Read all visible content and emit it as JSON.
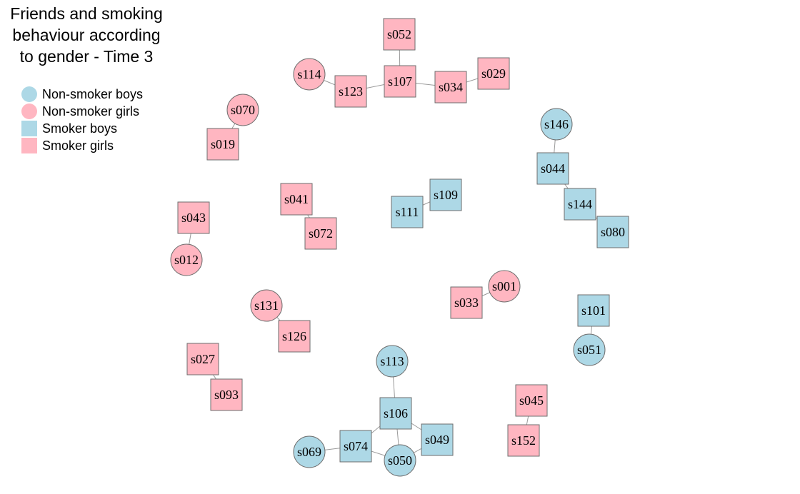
{
  "title": {
    "lines": [
      "Friends and smoking",
      "behaviour according",
      "to gender - Time 3"
    ]
  },
  "colors": {
    "boys": "#add8e6",
    "girls": "#ffb6c1",
    "node_border": "#6e6e6e",
    "edge": "#9a9a9a"
  },
  "legend": [
    {
      "label": "Non-smoker boys",
      "shape": "circle",
      "color": "#add8e6"
    },
    {
      "label": "Non-smoker girls",
      "shape": "circle",
      "color": "#ffb6c1"
    },
    {
      "label": "Smoker boys",
      "shape": "square",
      "color": "#add8e6"
    },
    {
      "label": "Smoker girls",
      "shape": "square",
      "color": "#ffb6c1"
    }
  ],
  "nodes": [
    {
      "id": "s052",
      "group": "girls",
      "shape": "square"
    },
    {
      "id": "s114",
      "group": "girls",
      "shape": "circle"
    },
    {
      "id": "s123",
      "group": "girls",
      "shape": "square"
    },
    {
      "id": "s107",
      "group": "girls",
      "shape": "square"
    },
    {
      "id": "s034",
      "group": "girls",
      "shape": "square"
    },
    {
      "id": "s029",
      "group": "girls",
      "shape": "square"
    },
    {
      "id": "s070",
      "group": "girls",
      "shape": "circle"
    },
    {
      "id": "s019",
      "group": "girls",
      "shape": "square"
    },
    {
      "id": "s146",
      "group": "boys",
      "shape": "circle"
    },
    {
      "id": "s044",
      "group": "boys",
      "shape": "square"
    },
    {
      "id": "s144",
      "group": "boys",
      "shape": "square"
    },
    {
      "id": "s080",
      "group": "boys",
      "shape": "square"
    },
    {
      "id": "s041",
      "group": "girls",
      "shape": "square"
    },
    {
      "id": "s072",
      "group": "girls",
      "shape": "square"
    },
    {
      "id": "s109",
      "group": "boys",
      "shape": "square"
    },
    {
      "id": "s111",
      "group": "boys",
      "shape": "square"
    },
    {
      "id": "s043",
      "group": "girls",
      "shape": "square"
    },
    {
      "id": "s012",
      "group": "girls",
      "shape": "circle"
    },
    {
      "id": "s001",
      "group": "girls",
      "shape": "circle"
    },
    {
      "id": "s033",
      "group": "girls",
      "shape": "square"
    },
    {
      "id": "s101",
      "group": "boys",
      "shape": "square"
    },
    {
      "id": "s051",
      "group": "boys",
      "shape": "circle"
    },
    {
      "id": "s131",
      "group": "girls",
      "shape": "circle"
    },
    {
      "id": "s126",
      "group": "girls",
      "shape": "square"
    },
    {
      "id": "s027",
      "group": "girls",
      "shape": "square"
    },
    {
      "id": "s093",
      "group": "girls",
      "shape": "square"
    },
    {
      "id": "s113",
      "group": "boys",
      "shape": "circle"
    },
    {
      "id": "s106",
      "group": "boys",
      "shape": "square"
    },
    {
      "id": "s049",
      "group": "boys",
      "shape": "square"
    },
    {
      "id": "s074",
      "group": "boys",
      "shape": "square"
    },
    {
      "id": "s050",
      "group": "boys",
      "shape": "circle"
    },
    {
      "id": "s069",
      "group": "boys",
      "shape": "circle"
    },
    {
      "id": "s045",
      "group": "girls",
      "shape": "square"
    },
    {
      "id": "s152",
      "group": "girls",
      "shape": "square"
    }
  ],
  "edges": [
    [
      "s052",
      "s107"
    ],
    [
      "s114",
      "s123"
    ],
    [
      "s123",
      "s107"
    ],
    [
      "s107",
      "s034"
    ],
    [
      "s034",
      "s029"
    ],
    [
      "s070",
      "s019"
    ],
    [
      "s146",
      "s044"
    ],
    [
      "s044",
      "s144"
    ],
    [
      "s144",
      "s080"
    ],
    [
      "s041",
      "s072"
    ],
    [
      "s109",
      "s111"
    ],
    [
      "s043",
      "s012"
    ],
    [
      "s001",
      "s033"
    ],
    [
      "s101",
      "s051"
    ],
    [
      "s131",
      "s126"
    ],
    [
      "s027",
      "s093"
    ],
    [
      "s113",
      "s106"
    ],
    [
      "s106",
      "s049"
    ],
    [
      "s106",
      "s074"
    ],
    [
      "s106",
      "s050"
    ],
    [
      "s074",
      "s050"
    ],
    [
      "s074",
      "s069"
    ],
    [
      "s049",
      "s050"
    ],
    [
      "s045",
      "s152"
    ]
  ]
}
